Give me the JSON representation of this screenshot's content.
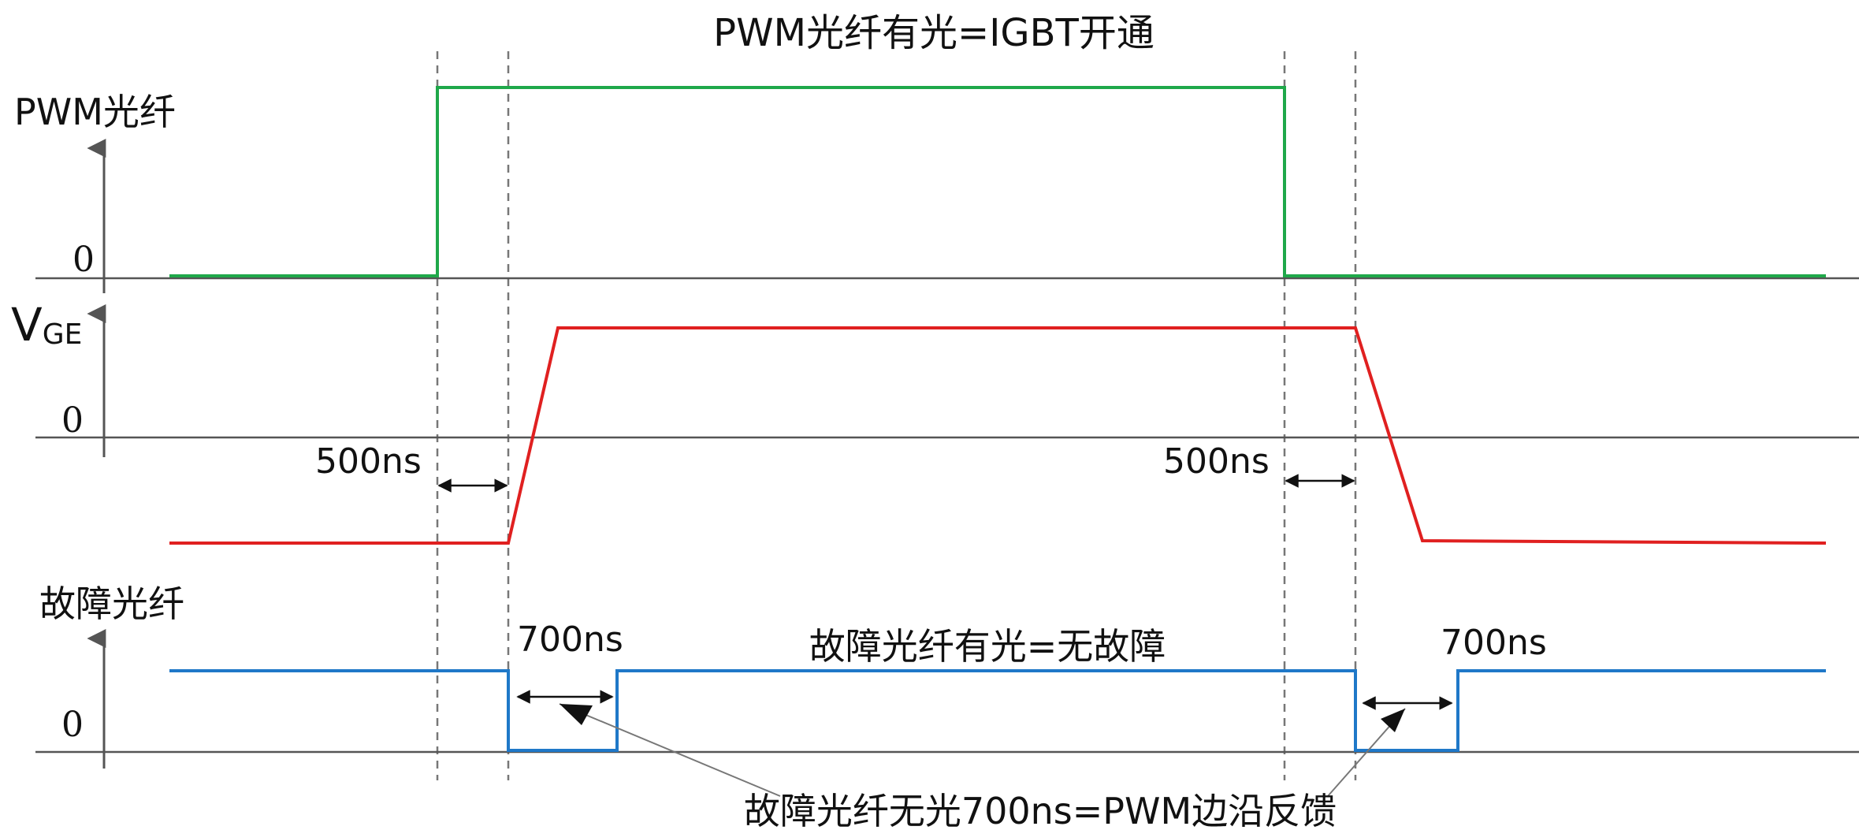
{
  "title": "PWM光纤有光=IGBT开通",
  "signals": {
    "pwm": {
      "label": "PWM光纤",
      "zero": "0",
      "color": "#1fa84a"
    },
    "vge": {
      "label_main": "V",
      "label_sub": "GE",
      "zero": "0",
      "color": "#e02020"
    },
    "fault": {
      "label": "故障光纤",
      "zero": "0",
      "color": "#1f78c8"
    }
  },
  "annotations": {
    "delay_on": "500ns",
    "delay_off": "500ns",
    "pulse_on": "700ns",
    "pulse_off": "700ns",
    "fault_high_note": "故障光纤有光=无故障",
    "fault_pulse_note": "故障光纤无光700ns=PWM边沿反馈"
  },
  "colors": {
    "axis": "#555555",
    "dashed": "#777777",
    "arrow": "#111111"
  }
}
